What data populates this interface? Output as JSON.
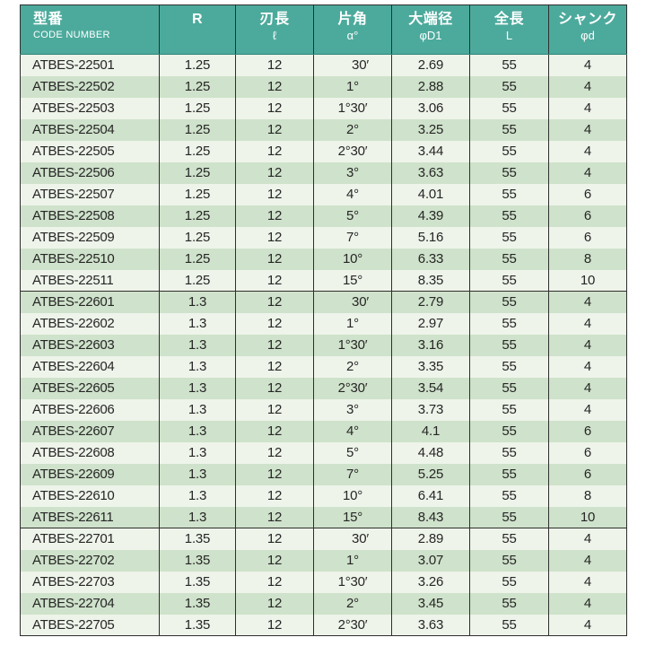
{
  "colors": {
    "header_bg": "#4caa9c",
    "row_light": "#eef4ea",
    "row_dark": "#cfe2cb",
    "grid_line": "#2e2e2e",
    "text": "#262626",
    "header_text": "#ffffff"
  },
  "table": {
    "columns": [
      {
        "ja": "型番",
        "sub": "CODE NUMBER"
      },
      {
        "ja": "R",
        "sub": ""
      },
      {
        "ja": "刃長",
        "sub": "ℓ"
      },
      {
        "ja": "片角",
        "sub": "α°"
      },
      {
        "ja": "大端径",
        "sub": "φD1"
      },
      {
        "ja": "全長",
        "sub": "L"
      },
      {
        "ja": "シャンク",
        "sub": "φd"
      }
    ],
    "groups": [
      {
        "r_value": "1.25",
        "rows": [
          [
            "ATBES-22501",
            "1.25",
            "12",
            "30′",
            "2.69",
            "55",
            "4"
          ],
          [
            "ATBES-22502",
            "1.25",
            "12",
            "1°",
            "2.88",
            "55",
            "4"
          ],
          [
            "ATBES-22503",
            "1.25",
            "12",
            "1°30′",
            "3.06",
            "55",
            "4"
          ],
          [
            "ATBES-22504",
            "1.25",
            "12",
            "2°",
            "3.25",
            "55",
            "4"
          ],
          [
            "ATBES-22505",
            "1.25",
            "12",
            "2°30′",
            "3.44",
            "55",
            "4"
          ],
          [
            "ATBES-22506",
            "1.25",
            "12",
            "3°",
            "3.63",
            "55",
            "4"
          ],
          [
            "ATBES-22507",
            "1.25",
            "12",
            "4°",
            "4.01",
            "55",
            "6"
          ],
          [
            "ATBES-22508",
            "1.25",
            "12",
            "5°",
            "4.39",
            "55",
            "6"
          ],
          [
            "ATBES-22509",
            "1.25",
            "12",
            "7°",
            "5.16",
            "55",
            "6"
          ],
          [
            "ATBES-22510",
            "1.25",
            "12",
            "10°",
            "6.33",
            "55",
            "8"
          ],
          [
            "ATBES-22511",
            "1.25",
            "12",
            "15°",
            "8.35",
            "55",
            "10"
          ]
        ]
      },
      {
        "r_value": "1.3",
        "rows": [
          [
            "ATBES-22601",
            "1.3",
            "12",
            "30′",
            "2.79",
            "55",
            "4"
          ],
          [
            "ATBES-22602",
            "1.3",
            "12",
            "1°",
            "2.97",
            "55",
            "4"
          ],
          [
            "ATBES-22603",
            "1.3",
            "12",
            "1°30′",
            "3.16",
            "55",
            "4"
          ],
          [
            "ATBES-22604",
            "1.3",
            "12",
            "2°",
            "3.35",
            "55",
            "4"
          ],
          [
            "ATBES-22605",
            "1.3",
            "12",
            "2°30′",
            "3.54",
            "55",
            "4"
          ],
          [
            "ATBES-22606",
            "1.3",
            "12",
            "3°",
            "3.73",
            "55",
            "4"
          ],
          [
            "ATBES-22607",
            "1.3",
            "12",
            "4°",
            "4.1",
            "55",
            "6"
          ],
          [
            "ATBES-22608",
            "1.3",
            "12",
            "5°",
            "4.48",
            "55",
            "6"
          ],
          [
            "ATBES-22609",
            "1.3",
            "12",
            "7°",
            "5.25",
            "55",
            "6"
          ],
          [
            "ATBES-22610",
            "1.3",
            "12",
            "10°",
            "6.41",
            "55",
            "8"
          ],
          [
            "ATBES-22611",
            "1.3",
            "12",
            "15°",
            "8.43",
            "55",
            "10"
          ]
        ]
      },
      {
        "r_value": "1.35",
        "rows": [
          [
            "ATBES-22701",
            "1.35",
            "12",
            "30′",
            "2.89",
            "55",
            "4"
          ],
          [
            "ATBES-22702",
            "1.35",
            "12",
            "1°",
            "3.07",
            "55",
            "4"
          ],
          [
            "ATBES-22703",
            "1.35",
            "12",
            "1°30′",
            "3.26",
            "55",
            "4"
          ],
          [
            "ATBES-22704",
            "1.35",
            "12",
            "2°",
            "3.45",
            "55",
            "4"
          ],
          [
            "ATBES-22705",
            "1.35",
            "12",
            "2°30′",
            "3.63",
            "55",
            "4"
          ]
        ]
      }
    ]
  }
}
